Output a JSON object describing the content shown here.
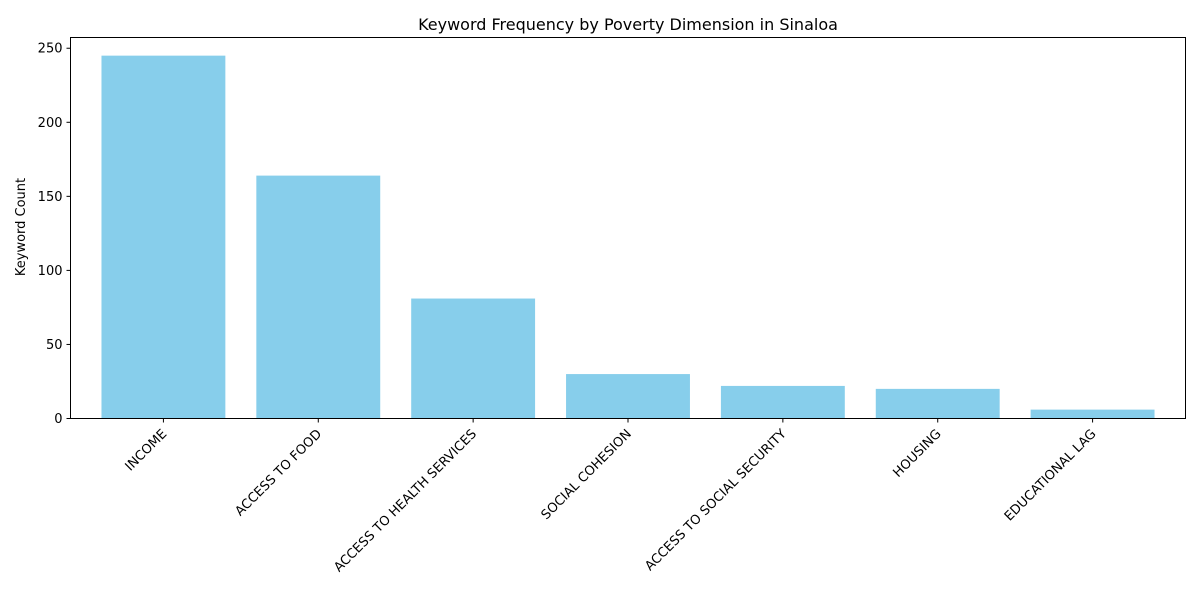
{
  "chart_data": {
    "type": "bar",
    "title": "Keyword Frequency by Poverty Dimension in Sinaloa",
    "xlabel": "",
    "ylabel": "Keyword Count",
    "categories": [
      "INCOME",
      "ACCESS TO FOOD",
      "ACCESS TO HEALTH SERVICES",
      "SOCIAL COHESION",
      "ACCESS TO SOCIAL SECURITY",
      "HOUSING",
      "EDUCATIONAL LAG"
    ],
    "values": [
      245,
      164,
      81,
      30,
      22,
      20,
      6
    ],
    "ylim": [
      0,
      257.25
    ],
    "yticks": [
      0,
      50,
      100,
      150,
      200,
      250
    ],
    "bar_color": "#87CEEB",
    "grid": false,
    "legend": "none"
  }
}
